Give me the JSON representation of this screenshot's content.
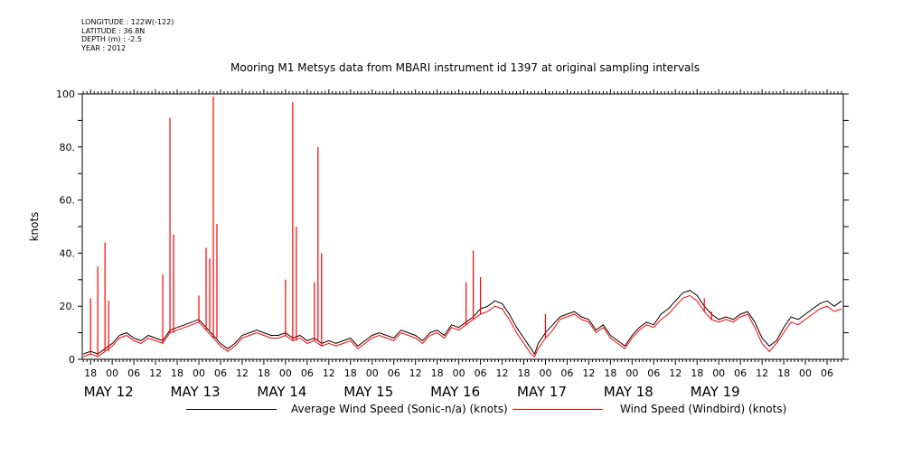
{
  "meta": {
    "longitude": "LONGITUDE : 122W(-122)",
    "latitude": "LATITUDE : 36.8N",
    "depth": "DEPTH (m) : -2.5",
    "year": "YEAR : 2012"
  },
  "chart_data": {
    "type": "line",
    "title": "Mooring M1 Metsys data from MBARI instrument id 1397 at original sampling intervals",
    "xlabel": "",
    "ylabel": "knots",
    "ylim": [
      0,
      100
    ],
    "yticks": [
      0,
      20,
      40,
      60,
      80,
      100
    ],
    "ytick_labels": [
      "0",
      "20.",
      "40.",
      "60.",
      "80.",
      "100"
    ],
    "xlim_hours_from_may12_00": [
      -8,
      153
    ],
    "hour_tick_labels": [
      "06",
      "12",
      "18",
      "00"
    ],
    "day_labels": [
      "MAY 12",
      "MAY 13",
      "MAY 14",
      "MAY 15",
      "MAY 16",
      "MAY 17",
      "MAY 18",
      "MAY 19"
    ],
    "legend_placement": "bottom",
    "grid": false,
    "series": [
      {
        "name": "Average Wind Speed (Sonic-n/a) (knots)",
        "color": "#000000",
        "points": [
          [
            -8,
            2
          ],
          [
            -6,
            3
          ],
          [
            -4,
            2
          ],
          [
            -2,
            4
          ],
          [
            0,
            6
          ],
          [
            2,
            9
          ],
          [
            4,
            10
          ],
          [
            6,
            8
          ],
          [
            8,
            7
          ],
          [
            10,
            9
          ],
          [
            12,
            8
          ],
          [
            14,
            7
          ],
          [
            16,
            11
          ],
          [
            18,
            12
          ],
          [
            20,
            13
          ],
          [
            22,
            14
          ],
          [
            24,
            15
          ],
          [
            26,
            12
          ],
          [
            28,
            9
          ],
          [
            30,
            6
          ],
          [
            32,
            4
          ],
          [
            34,
            6
          ],
          [
            36,
            9
          ],
          [
            38,
            10
          ],
          [
            40,
            11
          ],
          [
            42,
            10
          ],
          [
            44,
            9
          ],
          [
            46,
            9
          ],
          [
            48,
            10
          ],
          [
            50,
            8
          ],
          [
            52,
            9
          ],
          [
            54,
            7
          ],
          [
            56,
            8
          ],
          [
            58,
            6
          ],
          [
            60,
            7
          ],
          [
            62,
            6
          ],
          [
            64,
            7
          ],
          [
            66,
            8
          ],
          [
            68,
            5
          ],
          [
            70,
            7
          ],
          [
            72,
            9
          ],
          [
            74,
            10
          ],
          [
            76,
            9
          ],
          [
            78,
            8
          ],
          [
            80,
            11
          ],
          [
            82,
            10
          ],
          [
            84,
            9
          ],
          [
            86,
            7
          ],
          [
            88,
            10
          ],
          [
            90,
            11
          ],
          [
            92,
            9
          ],
          [
            94,
            13
          ],
          [
            96,
            12
          ],
          [
            98,
            14
          ],
          [
            100,
            16
          ],
          [
            102,
            19
          ],
          [
            104,
            20
          ],
          [
            106,
            22
          ],
          [
            108,
            21
          ],
          [
            110,
            17
          ],
          [
            112,
            12
          ],
          [
            114,
            8
          ],
          [
            116,
            4
          ],
          [
            117,
            2
          ],
          [
            118,
            6
          ],
          [
            120,
            10
          ],
          [
            122,
            13
          ],
          [
            124,
            16
          ],
          [
            126,
            17
          ],
          [
            128,
            18
          ],
          [
            130,
            16
          ],
          [
            132,
            15
          ],
          [
            134,
            11
          ],
          [
            136,
            13
          ],
          [
            138,
            9
          ],
          [
            140,
            7
          ],
          [
            142,
            5
          ],
          [
            144,
            9
          ],
          [
            146,
            12
          ],
          [
            148,
            14
          ],
          [
            150,
            13
          ],
          [
            152,
            17
          ],
          [
            154,
            19
          ],
          [
            156,
            22
          ],
          [
            158,
            25
          ],
          [
            160,
            26
          ],
          [
            162,
            24
          ],
          [
            164,
            20
          ],
          [
            166,
            17
          ],
          [
            168,
            15
          ],
          [
            170,
            16
          ],
          [
            172,
            15
          ],
          [
            174,
            17
          ],
          [
            176,
            18
          ],
          [
            178,
            14
          ],
          [
            180,
            8
          ],
          [
            182,
            5
          ],
          [
            184,
            7
          ],
          [
            186,
            12
          ],
          [
            188,
            16
          ],
          [
            190,
            15
          ],
          [
            192,
            17
          ],
          [
            194,
            19
          ],
          [
            196,
            21
          ],
          [
            198,
            22
          ],
          [
            200,
            20
          ],
          [
            202,
            22
          ]
        ]
      },
      {
        "name": "Wind Speed (Windbird) (knots)",
        "color": "#ff0000",
        "points": [
          [
            -8,
            1
          ],
          [
            -6,
            2
          ],
          [
            -4,
            1
          ],
          [
            -2,
            3
          ],
          [
            0,
            5
          ],
          [
            2,
            8
          ],
          [
            4,
            9
          ],
          [
            6,
            7
          ],
          [
            8,
            6
          ],
          [
            10,
            8
          ],
          [
            12,
            7
          ],
          [
            14,
            6
          ],
          [
            16,
            10
          ],
          [
            18,
            11
          ],
          [
            20,
            12
          ],
          [
            22,
            13
          ],
          [
            24,
            14
          ],
          [
            26,
            11
          ],
          [
            28,
            8
          ],
          [
            30,
            5
          ],
          [
            32,
            3
          ],
          [
            34,
            5
          ],
          [
            36,
            8
          ],
          [
            38,
            9
          ],
          [
            40,
            10
          ],
          [
            42,
            9
          ],
          [
            44,
            8
          ],
          [
            46,
            8
          ],
          [
            48,
            9
          ],
          [
            50,
            7
          ],
          [
            52,
            8
          ],
          [
            54,
            6
          ],
          [
            56,
            7
          ],
          [
            58,
            5
          ],
          [
            60,
            6
          ],
          [
            62,
            5
          ],
          [
            64,
            6
          ],
          [
            66,
            7
          ],
          [
            68,
            4
          ],
          [
            70,
            6
          ],
          [
            72,
            8
          ],
          [
            74,
            9
          ],
          [
            76,
            8
          ],
          [
            78,
            7
          ],
          [
            80,
            10
          ],
          [
            82,
            9
          ],
          [
            84,
            8
          ],
          [
            86,
            6
          ],
          [
            88,
            9
          ],
          [
            90,
            10
          ],
          [
            92,
            8
          ],
          [
            94,
            12
          ],
          [
            96,
            11
          ],
          [
            98,
            13
          ],
          [
            100,
            15
          ],
          [
            102,
            17
          ],
          [
            104,
            18
          ],
          [
            106,
            20
          ],
          [
            108,
            19
          ],
          [
            110,
            15
          ],
          [
            112,
            10
          ],
          [
            114,
            6
          ],
          [
            116,
            2
          ],
          [
            117,
            1
          ],
          [
            118,
            4
          ],
          [
            120,
            8
          ],
          [
            122,
            11
          ],
          [
            124,
            15
          ],
          [
            126,
            16
          ],
          [
            128,
            17
          ],
          [
            130,
            15
          ],
          [
            132,
            14
          ],
          [
            134,
            10
          ],
          [
            136,
            12
          ],
          [
            138,
            8
          ],
          [
            140,
            6
          ],
          [
            142,
            4
          ],
          [
            144,
            8
          ],
          [
            146,
            11
          ],
          [
            148,
            13
          ],
          [
            150,
            12
          ],
          [
            152,
            15
          ],
          [
            154,
            17
          ],
          [
            156,
            20
          ],
          [
            158,
            23
          ],
          [
            160,
            24
          ],
          [
            162,
            22
          ],
          [
            164,
            18
          ],
          [
            166,
            15
          ],
          [
            168,
            14
          ],
          [
            170,
            15
          ],
          [
            172,
            14
          ],
          [
            174,
            16
          ],
          [
            176,
            17
          ],
          [
            178,
            12
          ],
          [
            180,
            6
          ],
          [
            182,
            3
          ],
          [
            184,
            6
          ],
          [
            186,
            10
          ],
          [
            188,
            14
          ],
          [
            190,
            13
          ],
          [
            192,
            15
          ],
          [
            194,
            17
          ],
          [
            196,
            19
          ],
          [
            198,
            20
          ],
          [
            200,
            18
          ],
          [
            202,
            19
          ]
        ],
        "spikes": [
          [
            -6,
            23
          ],
          [
            -4,
            35
          ],
          [
            -2,
            44
          ],
          [
            -1,
            22
          ],
          [
            14,
            32
          ],
          [
            16,
            91
          ],
          [
            17,
            47
          ],
          [
            24,
            24
          ],
          [
            26,
            42
          ],
          [
            27,
            38
          ],
          [
            28,
            99
          ],
          [
            29,
            51
          ],
          [
            48,
            30
          ],
          [
            50,
            97
          ],
          [
            51,
            50
          ],
          [
            56,
            29
          ],
          [
            57,
            80
          ],
          [
            58,
            40
          ],
          [
            98,
            29
          ],
          [
            100,
            41
          ],
          [
            102,
            31
          ],
          [
            120,
            17
          ],
          [
            164,
            23
          ],
          [
            166,
            18
          ]
        ]
      }
    ]
  }
}
